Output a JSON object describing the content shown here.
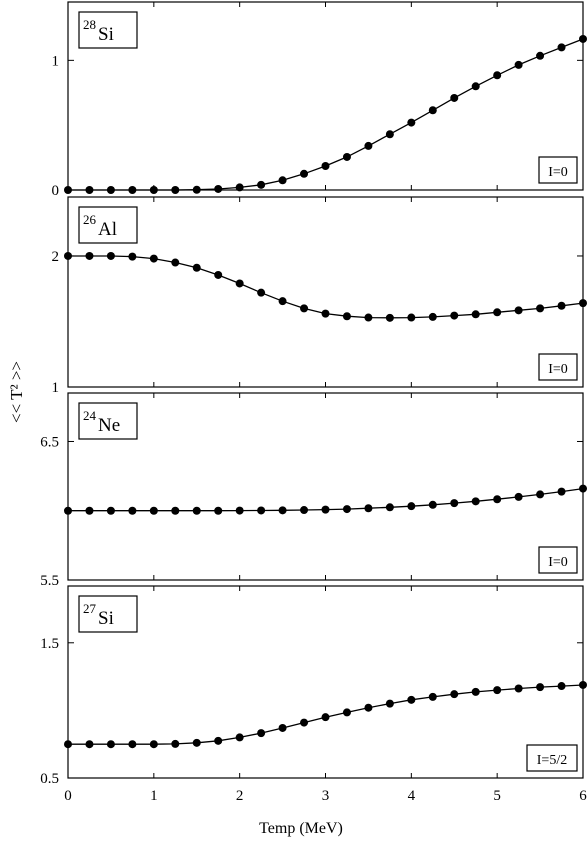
{
  "figure": {
    "xlabel": "Temp (MeV)",
    "ylabel": "<< T² >>",
    "x_ticks": [
      "0",
      "1",
      "2",
      "3",
      "4",
      "5",
      "6"
    ]
  },
  "chart_data": [
    {
      "type": "line",
      "nucleus": {
        "mass": "28",
        "symbol": "Si"
      },
      "spin_label": "I=0",
      "xlim": [
        0,
        6
      ],
      "ylim": [
        0,
        1.45
      ],
      "y_ticks": [
        "0",
        "1"
      ],
      "x": [
        0,
        0.25,
        0.5,
        0.75,
        1,
        1.25,
        1.5,
        1.75,
        2,
        2.25,
        2.5,
        2.75,
        3,
        3.25,
        3.5,
        3.75,
        4,
        4.25,
        4.5,
        4.75,
        5,
        5.25,
        5.5,
        5.75,
        6
      ],
      "values": [
        0,
        0,
        0,
        0,
        0,
        0,
        0.002,
        0.008,
        0.02,
        0.04,
        0.075,
        0.125,
        0.185,
        0.255,
        0.34,
        0.43,
        0.52,
        0.615,
        0.71,
        0.8,
        0.885,
        0.965,
        1.035,
        1.1,
        1.165
      ]
    },
    {
      "type": "line",
      "nucleus": {
        "mass": "26",
        "symbol": "Al"
      },
      "spin_label": "I=0",
      "xlim": [
        0,
        6
      ],
      "ylim": [
        1,
        2.45
      ],
      "y_ticks": [
        "1",
        "2"
      ],
      "x": [
        0,
        0.25,
        0.5,
        0.75,
        1,
        1.25,
        1.5,
        1.75,
        2,
        2.25,
        2.5,
        2.75,
        3,
        3.25,
        3.5,
        3.75,
        4,
        4.25,
        4.5,
        4.75,
        5,
        5.25,
        5.5,
        5.75,
        6
      ],
      "values": [
        2.0,
        2.0,
        2.0,
        1.995,
        1.98,
        1.95,
        1.91,
        1.855,
        1.79,
        1.72,
        1.655,
        1.6,
        1.56,
        1.54,
        1.53,
        1.528,
        1.53,
        1.535,
        1.545,
        1.555,
        1.57,
        1.585,
        1.6,
        1.62,
        1.64
      ]
    },
    {
      "type": "line",
      "nucleus": {
        "mass": "24",
        "symbol": "Ne"
      },
      "spin_label": "I=0",
      "xlim": [
        0,
        6
      ],
      "ylim": [
        5.5,
        6.85
      ],
      "y_ticks": [
        "5.5",
        "6.5"
      ],
      "x": [
        0,
        0.25,
        0.5,
        0.75,
        1,
        1.25,
        1.5,
        1.75,
        2,
        2.25,
        2.5,
        2.75,
        3,
        3.25,
        3.5,
        3.75,
        4,
        4.25,
        4.5,
        4.75,
        5,
        5.25,
        5.5,
        5.75,
        6
      ],
      "values": [
        6.0,
        6.0,
        6.0,
        6.0,
        6.0,
        6.0,
        6.0,
        6.0,
        6.001,
        6.002,
        6.003,
        6.005,
        6.008,
        6.012,
        6.018,
        6.025,
        6.033,
        6.043,
        6.055,
        6.068,
        6.083,
        6.1,
        6.118,
        6.138,
        6.16
      ]
    },
    {
      "type": "line",
      "nucleus": {
        "mass": "27",
        "symbol": "Si"
      },
      "spin_label": "I=5/2",
      "xlim": [
        0,
        6
      ],
      "ylim": [
        0.5,
        1.92
      ],
      "y_ticks": [
        "0.5",
        "1.5"
      ],
      "x": [
        0,
        0.25,
        0.5,
        0.75,
        1,
        1.25,
        1.5,
        1.75,
        2,
        2.25,
        2.5,
        2.75,
        3,
        3.25,
        3.5,
        3.75,
        4,
        4.25,
        4.5,
        4.75,
        5,
        5.25,
        5.5,
        5.75,
        6
      ],
      "values": [
        0.75,
        0.75,
        0.75,
        0.75,
        0.75,
        0.752,
        0.76,
        0.775,
        0.8,
        0.832,
        0.87,
        0.91,
        0.95,
        0.985,
        1.02,
        1.05,
        1.078,
        1.1,
        1.12,
        1.137,
        1.15,
        1.162,
        1.172,
        1.18,
        1.188
      ]
    }
  ]
}
